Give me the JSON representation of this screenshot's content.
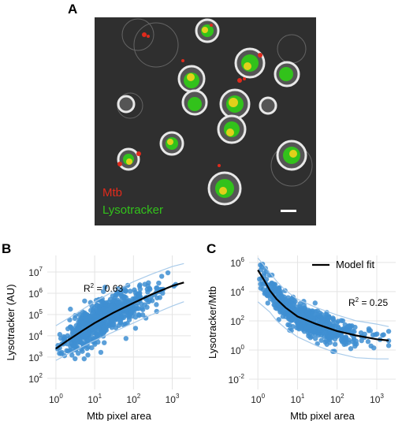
{
  "panels": {
    "a": {
      "letter": "A",
      "legend_mtb": "Mtb",
      "legend_lyso": "Lysotracker",
      "color_mtb": "#e02a1c",
      "color_lyso": "#32c21b"
    },
    "b": {
      "letter": "B"
    },
    "c": {
      "letter": "C"
    }
  },
  "chart_data": [
    {
      "type": "scatter",
      "xlabel": "Mtb pixel area",
      "ylabel": "Lysotracker (AU)",
      "x_scale": "log",
      "y_scale": "log",
      "xlim": [
        0.6,
        3000
      ],
      "ylim": [
        30,
        60000000
      ],
      "x_ticks": [
        1,
        10,
        100,
        1000
      ],
      "x_tick_labels": [
        "10",
        "10",
        "10",
        "10"
      ],
      "x_tick_exps": [
        "0",
        "1",
        "2",
        "3"
      ],
      "y_ticks": [
        100,
        1000,
        10000,
        100000,
        1000000,
        10000000
      ],
      "y_tick_labels": [
        "10",
        "10",
        "10",
        "10",
        "10",
        "10"
      ],
      "y_tick_exps": [
        "2",
        "3",
        "4",
        "5",
        "6",
        "7"
      ],
      "annotation": {
        "r2_prefix": "R",
        "r2_sup": "2",
        "r2_value": " = 0.63"
      },
      "fit": {
        "x": [
          1,
          2,
          5,
          10,
          30,
          100,
          300,
          1000,
          2000
        ],
        "y": [
          2500,
          6000,
          18000,
          40000,
          120000,
          350000,
          900000,
          2200000,
          3200000
        ]
      },
      "band_upper": {
        "x": [
          1,
          3,
          10,
          30,
          100,
          300,
          1000,
          2000
        ],
        "y": [
          30000,
          100000,
          400000,
          1200000,
          3500000,
          8000000,
          18000000,
          25000000
        ]
      },
      "band_lower": {
        "x": [
          1,
          3,
          10,
          30,
          100,
          300,
          1000,
          2000
        ],
        "y": [
          700,
          2000,
          6000,
          15000,
          40000,
          100000,
          250000,
          400000
        ]
      },
      "marker_color": "#3f8fd2",
      "fit_color": "#000000",
      "band_color": "#a9cbea"
    },
    {
      "type": "scatter",
      "xlabel": "Mtb pixel area",
      "ylabel": "Lysotracker/Mtb",
      "x_scale": "log",
      "y_scale": "log",
      "xlim": [
        0.6,
        3000
      ],
      "ylim": [
        0.002,
        3000000
      ],
      "x_ticks": [
        1,
        10,
        100,
        1000
      ],
      "x_tick_labels": [
        "10",
        "10",
        "10",
        "10"
      ],
      "x_tick_exps": [
        "0",
        "1",
        "2",
        "3"
      ],
      "y_ticks": [
        0.01,
        1,
        100,
        10000,
        1000000
      ],
      "y_tick_labels": [
        "10",
        "10",
        "10",
        "10",
        "10"
      ],
      "y_tick_exps": [
        "-2",
        "0",
        "2",
        "4",
        "6"
      ],
      "legend": {
        "entry": "Model fit",
        "position": "top-right"
      },
      "annotation": {
        "r2_prefix": "R",
        "r2_sup": "2",
        "r2_value": " = 0.25"
      },
      "fit": {
        "x": [
          1,
          1.5,
          2,
          3,
          5,
          10,
          30,
          100,
          300,
          1000,
          2000
        ],
        "y": [
          300000,
          50000,
          12000,
          3000,
          800,
          200,
          60,
          20,
          10,
          5.5,
          4.5
        ]
      },
      "band_upper": {
        "x": [
          1,
          2,
          3,
          5,
          10,
          30,
          100,
          300,
          1000,
          2000
        ],
        "y": [
          2000000,
          200000,
          50000,
          12000,
          3000,
          800,
          250,
          100,
          60,
          40
        ]
      },
      "band_lower": {
        "x": [
          1,
          2,
          3,
          5,
          10,
          30,
          100,
          300,
          1000,
          2000
        ],
        "y": [
          2000,
          400,
          100,
          30,
          8,
          2,
          0.6,
          0.3,
          0.25,
          0.25
        ]
      },
      "marker_color": "#3f8fd2",
      "fit_color": "#000000",
      "band_color": "#a9cbea"
    }
  ]
}
